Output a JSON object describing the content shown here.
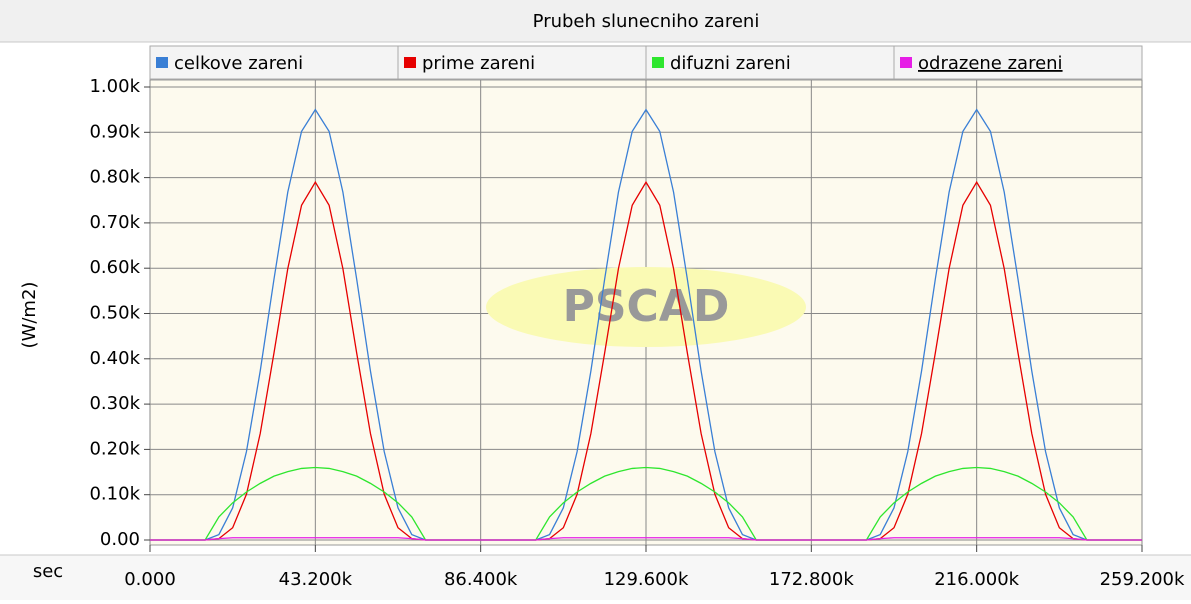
{
  "chart_data": {
    "type": "line",
    "title": "Prubeh slunecniho zareni",
    "ylabel": "(W/m2)",
    "xlabel": "sec",
    "watermark": "PSCAD",
    "legend": "top",
    "grid": true,
    "xlim": [
      0,
      259200
    ],
    "ylim": [
      0,
      1000
    ],
    "xticks": [
      {
        "value": 0,
        "label": "0.000"
      },
      {
        "value": 43200,
        "label": "43.200k"
      },
      {
        "value": 86400,
        "label": "86.400k"
      },
      {
        "value": 129600,
        "label": "129.600k"
      },
      {
        "value": 172800,
        "label": "172.800k"
      },
      {
        "value": 216000,
        "label": "216.000k"
      },
      {
        "value": 259200,
        "label": "259.200k"
      }
    ],
    "yticks": [
      {
        "value": 0,
        "label": "0.00"
      },
      {
        "value": 100,
        "label": "0.10k"
      },
      {
        "value": 200,
        "label": "0.20k"
      },
      {
        "value": 300,
        "label": "0.30k"
      },
      {
        "value": 400,
        "label": "0.40k"
      },
      {
        "value": 500,
        "label": "0.50k"
      },
      {
        "value": 600,
        "label": "0.60k"
      },
      {
        "value": 700,
        "label": "0.70k"
      },
      {
        "value": 800,
        "label": "0.80k"
      },
      {
        "value": 900,
        "label": "0.90k"
      },
      {
        "value": 1000,
        "label": "1.00k"
      }
    ],
    "x": [
      0,
      3600,
      7200,
      10800,
      14400,
      18000,
      21600,
      25200,
      28800,
      32400,
      36000,
      39600,
      43200,
      46800,
      50400,
      54000,
      57600,
      61200,
      64800,
      68400,
      72000,
      75600,
      79200,
      82800,
      86400,
      90000,
      93600,
      97200,
      100800,
      104400,
      108000,
      111600,
      115200,
      118800,
      122400,
      126000,
      129600,
      133200,
      136800,
      140400,
      144000,
      147600,
      151200,
      154800,
      158400,
      162000,
      165600,
      169200,
      172800,
      176400,
      180000,
      183600,
      187200,
      190800,
      194400,
      198000,
      201600,
      205200,
      208800,
      212400,
      216000,
      219600,
      223200,
      226800,
      230400,
      234000,
      237600,
      241200,
      244800,
      248400,
      252000,
      255600,
      259200
    ],
    "series": [
      {
        "name": "celkove zareni",
        "color": "#3a7fd5",
        "values": [
          0,
          0,
          0,
          0,
          0,
          12,
          71,
          195,
          373,
          576,
          768,
          902,
          950,
          902,
          768,
          576,
          373,
          195,
          71,
          12,
          0,
          0,
          0,
          0,
          0,
          0,
          0,
          0,
          0,
          12,
          71,
          195,
          373,
          576,
          768,
          902,
          950,
          902,
          768,
          576,
          373,
          195,
          71,
          12,
          0,
          0,
          0,
          0,
          0,
          0,
          0,
          0,
          0,
          12,
          71,
          195,
          373,
          576,
          768,
          902,
          950,
          902,
          768,
          576,
          373,
          195,
          71,
          12,
          0,
          0,
          0,
          0,
          0
        ]
      },
      {
        "name": "prime zareni",
        "color": "#e60000",
        "values": [
          0,
          0,
          0,
          0,
          0,
          3,
          27,
          101,
          235,
          413,
          599,
          739,
          790,
          739,
          599,
          413,
          235,
          101,
          27,
          3,
          0,
          0,
          0,
          0,
          0,
          0,
          0,
          0,
          0,
          3,
          27,
          101,
          235,
          413,
          599,
          739,
          790,
          739,
          599,
          413,
          235,
          101,
          27,
          3,
          0,
          0,
          0,
          0,
          0,
          0,
          0,
          0,
          0,
          3,
          27,
          101,
          235,
          413,
          599,
          739,
          790,
          739,
          599,
          413,
          235,
          101,
          27,
          3,
          0,
          0,
          0,
          0,
          0
        ]
      },
      {
        "name": "difuzni zareni",
        "color": "#2ee62e",
        "values": [
          0,
          0,
          0,
          0,
          0,
          51,
          82,
          106,
          125,
          141,
          151,
          158,
          160,
          158,
          151,
          141,
          125,
          106,
          82,
          51,
          0,
          0,
          0,
          0,
          0,
          0,
          0,
          0,
          0,
          51,
          82,
          106,
          125,
          141,
          151,
          158,
          160,
          158,
          151,
          141,
          125,
          106,
          82,
          51,
          0,
          0,
          0,
          0,
          0,
          0,
          0,
          0,
          0,
          51,
          82,
          106,
          125,
          141,
          151,
          158,
          160,
          158,
          151,
          141,
          125,
          106,
          82,
          51,
          0,
          0,
          0,
          0,
          0
        ]
      },
      {
        "name": "odrazene zareni",
        "color": "#e61ee6",
        "values": [
          0,
          0,
          0,
          0,
          0,
          3,
          5,
          5,
          5,
          5,
          5,
          5,
          5,
          5,
          5,
          5,
          5,
          5,
          5,
          3,
          0,
          0,
          0,
          0,
          0,
          0,
          0,
          0,
          0,
          3,
          5,
          5,
          5,
          5,
          5,
          5,
          5,
          5,
          5,
          5,
          5,
          5,
          5,
          3,
          0,
          0,
          0,
          0,
          0,
          0,
          0,
          0,
          0,
          3,
          5,
          5,
          5,
          5,
          5,
          5,
          5,
          5,
          5,
          5,
          5,
          5,
          5,
          3,
          0,
          0,
          0,
          0,
          0
        ]
      }
    ]
  }
}
